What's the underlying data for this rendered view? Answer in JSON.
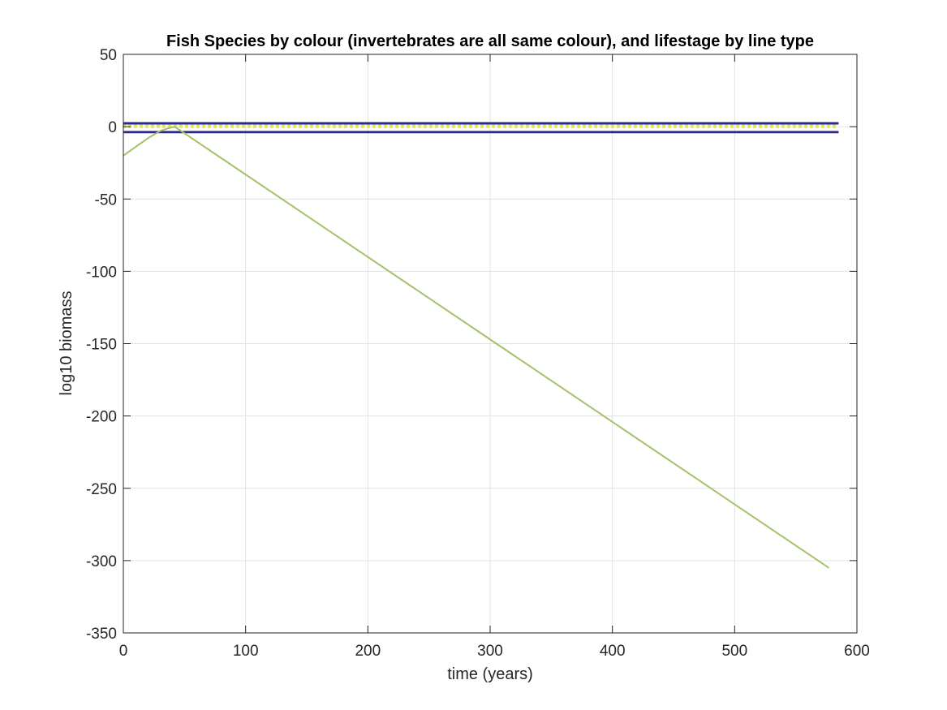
{
  "chart_data": {
    "type": "line",
    "title": "Fish Species by colour (invertebrates are all same colour), and lifestage by line type",
    "xlabel": "time (years)",
    "ylabel": "log10 biomass",
    "xlim": [
      0,
      600
    ],
    "ylim": [
      -350,
      50
    ],
    "xticks": [
      0,
      100,
      200,
      300,
      400,
      500,
      600
    ],
    "yticks": [
      50,
      0,
      -50,
      -100,
      -150,
      -200,
      -250,
      -300,
      -350
    ],
    "xtick_labels": [
      "0",
      "100",
      "200",
      "300",
      "400",
      "500",
      "600"
    ],
    "ytick_labels": [
      "50",
      "0",
      "-50",
      "-100",
      "-150",
      "-200",
      "-250",
      "-300",
      "-350"
    ],
    "grid": true,
    "box": true,
    "colors": {
      "background": "#ffffff",
      "axes": "#262626",
      "grid": "#e3e3e3",
      "navy": "#2b2a8c",
      "yellow": "#e6e35c",
      "green": "#a4c26a"
    },
    "series": [
      {
        "color": "#2b2a8c",
        "style": "solid",
        "x": [
          0,
          585
        ],
        "y": [
          -4,
          -4
        ]
      },
      {
        "color": "#2b2a8c",
        "style": "solid",
        "x": [
          0,
          585
        ],
        "y": [
          -3.5,
          -3.5
        ]
      },
      {
        "color": "#2b2a8c",
        "style": "solid",
        "x": [
          0,
          585
        ],
        "y": [
          2,
          2
        ]
      },
      {
        "color": "#2b2a8c",
        "style": "solid",
        "x": [
          0,
          585
        ],
        "y": [
          2.6,
          2.6
        ]
      },
      {
        "color": "#e6e35c",
        "style": "dotted",
        "x": [
          0,
          585
        ],
        "y": [
          0.8,
          0.8
        ]
      },
      {
        "color": "#e6e35c",
        "style": "dotted",
        "x": [
          0,
          585
        ],
        "y": [
          -0.3,
          -0.3
        ]
      },
      {
        "color": "#a4c26a",
        "style": "solid",
        "x": [
          0,
          10,
          20,
          30,
          37,
          42,
          577
        ],
        "y": [
          -20,
          -14,
          -8,
          -3,
          -1,
          0,
          -305
        ]
      }
    ]
  }
}
